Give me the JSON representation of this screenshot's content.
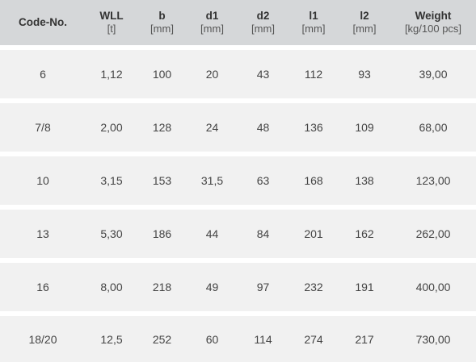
{
  "table": {
    "columns": [
      {
        "title": "Code-No.",
        "unit": ""
      },
      {
        "title": "WLL",
        "unit": "[t]"
      },
      {
        "title": "b",
        "unit": "[mm]"
      },
      {
        "title": "d1",
        "unit": "[mm]"
      },
      {
        "title": "d2",
        "unit": "[mm]"
      },
      {
        "title": "l1",
        "unit": "[mm]"
      },
      {
        "title": "l2",
        "unit": "[mm]"
      },
      {
        "title": "Weight",
        "unit": "[kg/100 pcs]"
      }
    ],
    "rows": [
      [
        "6",
        "1,12",
        "100",
        "20",
        "43",
        "112",
        "93",
        "39,00"
      ],
      [
        "7/8",
        "2,00",
        "128",
        "24",
        "48",
        "136",
        "109",
        "68,00"
      ],
      [
        "10",
        "3,15",
        "153",
        "31,5",
        "63",
        "168",
        "138",
        "123,00"
      ],
      [
        "13",
        "5,30",
        "186",
        "44",
        "84",
        "201",
        "162",
        "262,00"
      ],
      [
        "16",
        "8,00",
        "218",
        "49",
        "97",
        "232",
        "191",
        "400,00"
      ],
      [
        "18/20",
        "12,5",
        "252",
        "60",
        "114",
        "274",
        "217",
        "730,00"
      ]
    ]
  },
  "colors": {
    "header_bg": "#d5d7d9",
    "row_bg": "#f1f1f1",
    "text": "#444444"
  }
}
